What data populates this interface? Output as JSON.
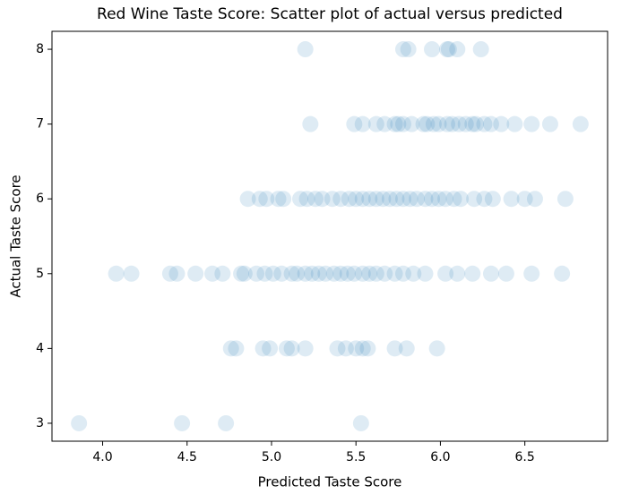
{
  "chart_data": {
    "type": "scatter",
    "title": "Red Wine Taste Score: Scatter plot of actual versus predicted",
    "x_label": "Predicted Taste Score",
    "y_label": "Actual Taste Score",
    "color": "#1f77b4",
    "alpha": 0.15,
    "xlim": [
      3.7,
      6.99
    ],
    "ylim": [
      2.76,
      8.24
    ],
    "xticks": [
      {
        "value": 4,
        "label": "4.0"
      },
      4.5,
      {
        "value": 5,
        "label": "5.0"
      },
      5.5,
      {
        "value": 6,
        "label": "6.0"
      },
      6.5
    ],
    "yticks": [
      3,
      4,
      5,
      6,
      7,
      8
    ],
    "x": [
      5.2,
      5.78,
      5.81,
      5.95,
      6.04,
      6.05,
      6.1,
      6.24,
      5.23,
      5.49,
      5.54,
      5.62,
      5.67,
      5.73,
      5.75,
      5.78,
      5.83,
      5.9,
      5.92,
      5.96,
      5.99,
      6.04,
      6.07,
      6.11,
      6.15,
      6.19,
      6.21,
      6.26,
      6.3,
      6.36,
      6.44,
      6.54,
      6.65,
      6.83,
      4.86,
      4.93,
      4.97,
      5.04,
      5.07,
      5.17,
      5.21,
      5.26,
      5.3,
      5.36,
      5.41,
      5.46,
      5.5,
      5.54,
      5.58,
      5.62,
      5.66,
      5.7,
      5.74,
      5.78,
      5.82,
      5.86,
      5.91,
      5.95,
      5.99,
      6.03,
      6.08,
      6.12,
      6.2,
      6.26,
      6.31,
      6.42,
      6.5,
      6.56,
      6.74,
      4.08,
      4.17,
      4.4,
      4.44,
      4.55,
      4.65,
      4.71,
      4.82,
      4.84,
      4.91,
      4.96,
      5.01,
      5.06,
      5.12,
      5.15,
      5.2,
      5.24,
      5.28,
      5.32,
      5.37,
      5.41,
      5.45,
      5.49,
      5.54,
      5.58,
      5.62,
      5.67,
      5.73,
      5.78,
      5.84,
      5.91,
      6.03,
      6.1,
      6.19,
      6.3,
      6.39,
      6.54,
      6.72,
      4.76,
      4.79,
      4.95,
      4.99,
      5.09,
      5.12,
      5.2,
      5.39,
      5.44,
      5.5,
      5.54,
      5.57,
      5.73,
      5.8,
      5.98,
      3.86,
      4.47,
      4.73,
      5.53
    ],
    "values": [
      8,
      8,
      8,
      8,
      8,
      8,
      8,
      8,
      7,
      7,
      7,
      7,
      7,
      7,
      7,
      7,
      7,
      7,
      7,
      7,
      7,
      7,
      7,
      7,
      7,
      7,
      7,
      7,
      7,
      7,
      7,
      7,
      7,
      7,
      6,
      6,
      6,
      6,
      6,
      6,
      6,
      6,
      6,
      6,
      6,
      6,
      6,
      6,
      6,
      6,
      6,
      6,
      6,
      6,
      6,
      6,
      6,
      6,
      6,
      6,
      6,
      6,
      6,
      6,
      6,
      6,
      6,
      6,
      6,
      5,
      5,
      5,
      5,
      5,
      5,
      5,
      5,
      5,
      5,
      5,
      5,
      5,
      5,
      5,
      5,
      5,
      5,
      5,
      5,
      5,
      5,
      5,
      5,
      5,
      5,
      5,
      5,
      5,
      5,
      5,
      5,
      5,
      5,
      5,
      5,
      5,
      5,
      4,
      4,
      4,
      4,
      4,
      4,
      4,
      4,
      4,
      4,
      4,
      4,
      4,
      4,
      4,
      3,
      3,
      3,
      3
    ]
  }
}
